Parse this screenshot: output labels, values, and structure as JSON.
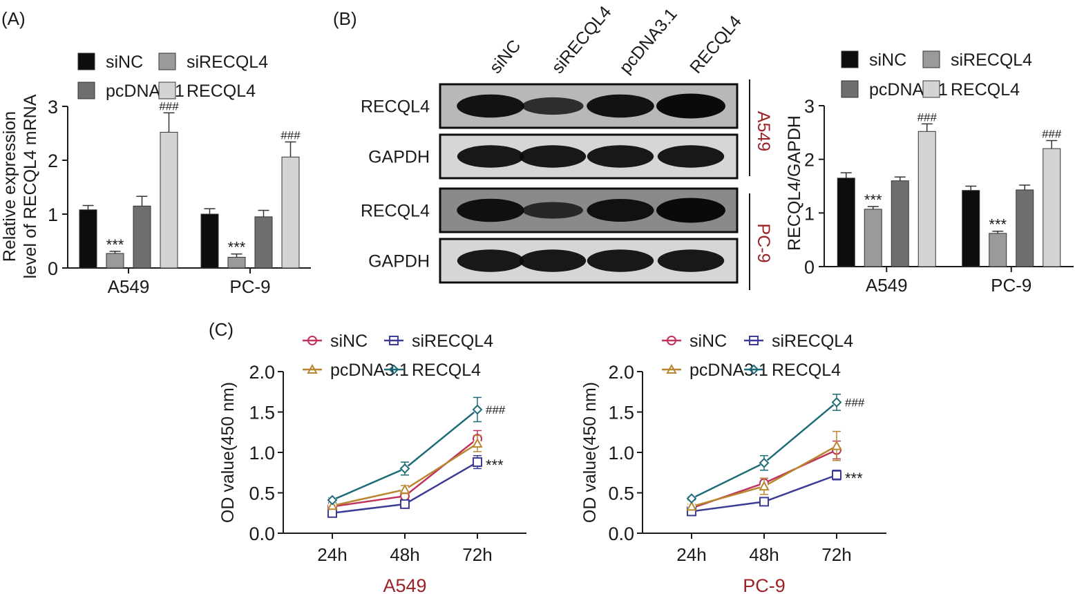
{
  "panels": {
    "a_label": "(A)",
    "b_label": "(B)",
    "c_label": "(C)"
  },
  "bar_legend": [
    "siNC",
    "siRECQL4",
    "pcDNA3.1",
    "RECQL4"
  ],
  "bar_colors": [
    "#0d0d0d",
    "#9a9a9a",
    "#6f6f6f",
    "#d4d4d4"
  ],
  "western_blot": {
    "lanes": [
      "siNC",
      "siRECQL4",
      "pcDNA3.1",
      "RECQL4"
    ],
    "rows": [
      {
        "protein": "RECQL4",
        "cell_line": "A549",
        "intensity": [
          0.9,
          0.55,
          0.9,
          1.0
        ]
      },
      {
        "protein": "GAPDH",
        "cell_line": "A549",
        "intensity": [
          0.85,
          0.85,
          0.85,
          0.85
        ]
      },
      {
        "protein": "RECQL4",
        "cell_line": "PC-9",
        "intensity": [
          0.9,
          0.5,
          0.88,
          1.0
        ]
      },
      {
        "protein": "GAPDH",
        "cell_line": "PC-9",
        "intensity": [
          0.85,
          0.85,
          0.85,
          0.85
        ]
      }
    ],
    "group_labels": [
      "A549",
      "PC-9"
    ],
    "group_label_color": "#9b2226"
  },
  "line_colors": [
    "#c0325a",
    "#3c3c96",
    "#b8862e",
    "#1e6b78"
  ],
  "line_markers": [
    "circle",
    "square",
    "triangle",
    "diamond"
  ],
  "subtitle_color": "#9b2226",
  "chart_data": [
    {
      "id": "A",
      "type": "bar",
      "title": "",
      "xlabel": "",
      "ylabel": "Relative expression level of RECQL4 mRNA",
      "ylabel_lines": [
        "Relative expression",
        "level of RECQL4 mRNA"
      ],
      "categories": [
        "A549",
        "PC-9"
      ],
      "ylim": [
        0,
        3
      ],
      "yticks": [
        "0",
        "1",
        "2",
        "3"
      ],
      "legend": "top",
      "series": [
        {
          "name": "siNC",
          "values": [
            1.08,
            1.0
          ],
          "errors": [
            0.08,
            0.1
          ]
        },
        {
          "name": "siRECQL4",
          "values": [
            0.27,
            0.2
          ],
          "errors": [
            0.04,
            0.06
          ]
        },
        {
          "name": "pcDNA3.1",
          "values": [
            1.15,
            0.95
          ],
          "errors": [
            0.18,
            0.12
          ]
        },
        {
          "name": "RECQL4",
          "values": [
            2.52,
            2.06
          ],
          "errors": [
            0.36,
            0.28
          ]
        }
      ],
      "annotations": [
        {
          "series": "siRECQL4",
          "category": "A549",
          "text": "***"
        },
        {
          "series": "siRECQL4",
          "category": "PC-9",
          "text": "***"
        },
        {
          "series": "RECQL4",
          "category": "A549",
          "text": "###"
        },
        {
          "series": "RECQL4",
          "category": "PC-9",
          "text": "###"
        }
      ]
    },
    {
      "id": "B",
      "type": "bar",
      "title": "",
      "xlabel": "",
      "ylabel": "RECQL4/GAPDH",
      "ylabel_lines": [
        "RECQL4/GAPDH"
      ],
      "categories": [
        "A549",
        "PC-9"
      ],
      "ylim": [
        0,
        3
      ],
      "yticks": [
        "0",
        "1",
        "2",
        "3"
      ],
      "legend": "top",
      "series": [
        {
          "name": "siNC",
          "values": [
            1.65,
            1.42
          ],
          "errors": [
            0.1,
            0.08
          ]
        },
        {
          "name": "siRECQL4",
          "values": [
            1.07,
            0.62
          ],
          "errors": [
            0.05,
            0.04
          ]
        },
        {
          "name": "pcDNA3.1",
          "values": [
            1.6,
            1.43
          ],
          "errors": [
            0.07,
            0.09
          ]
        },
        {
          "name": "RECQL4",
          "values": [
            2.52,
            2.2
          ],
          "errors": [
            0.14,
            0.15
          ]
        }
      ],
      "annotations": [
        {
          "series": "siRECQL4",
          "category": "A549",
          "text": "***"
        },
        {
          "series": "siRECQL4",
          "category": "PC-9",
          "text": "***"
        },
        {
          "series": "RECQL4",
          "category": "A549",
          "text": "###"
        },
        {
          "series": "RECQL4",
          "category": "PC-9",
          "text": "###"
        }
      ]
    },
    {
      "id": "C1",
      "type": "line",
      "title": "A549",
      "xlabel": "",
      "ylabel": "OD value(450 nm)",
      "x": [
        "24h",
        "48h",
        "72h"
      ],
      "ylim": [
        0,
        2.0
      ],
      "yticks": [
        "0.0",
        "0.5",
        "1.0",
        "1.5",
        "2.0"
      ],
      "legend": "top",
      "series": [
        {
          "name": "siNC",
          "values": [
            0.33,
            0.46,
            1.17
          ],
          "errors": [
            0.03,
            0.04,
            0.1
          ]
        },
        {
          "name": "siRECQL4",
          "values": [
            0.25,
            0.36,
            0.88
          ],
          "errors": [
            0.02,
            0.03,
            0.08
          ]
        },
        {
          "name": "pcDNA3.1",
          "values": [
            0.34,
            0.54,
            1.11
          ],
          "errors": [
            0.03,
            0.05,
            0.1
          ]
        },
        {
          "name": "RECQL4",
          "values": [
            0.41,
            0.8,
            1.53
          ],
          "errors": [
            0.03,
            0.08,
            0.15
          ]
        }
      ],
      "annotations": [
        {
          "series": "RECQL4",
          "x": "72h",
          "text": "###"
        },
        {
          "series": "siRECQL4",
          "x": "72h",
          "text": "***"
        }
      ]
    },
    {
      "id": "C2",
      "type": "line",
      "title": "PC-9",
      "xlabel": "",
      "ylabel": "OD value(450 nm)",
      "x": [
        "24h",
        "48h",
        "72h"
      ],
      "ylim": [
        0,
        2.0
      ],
      "yticks": [
        "0.0",
        "0.5",
        "1.0",
        "1.5",
        "2.0"
      ],
      "legend": "top",
      "series": [
        {
          "name": "siNC",
          "values": [
            0.31,
            0.62,
            1.03
          ],
          "errors": [
            0.03,
            0.06,
            0.11
          ]
        },
        {
          "name": "siRECQL4",
          "values": [
            0.27,
            0.39,
            0.72
          ],
          "errors": [
            0.02,
            0.05,
            0.06
          ]
        },
        {
          "name": "pcDNA3.1",
          "values": [
            0.33,
            0.58,
            1.08
          ],
          "errors": [
            0.03,
            0.1,
            0.18
          ]
        },
        {
          "name": "RECQL4",
          "values": [
            0.43,
            0.87,
            1.62
          ],
          "errors": [
            0.02,
            0.09,
            0.1
          ]
        }
      ],
      "annotations": [
        {
          "series": "RECQL4",
          "x": "72h",
          "text": "###"
        },
        {
          "series": "siRECQL4",
          "x": "72h",
          "text": "***"
        }
      ]
    }
  ]
}
